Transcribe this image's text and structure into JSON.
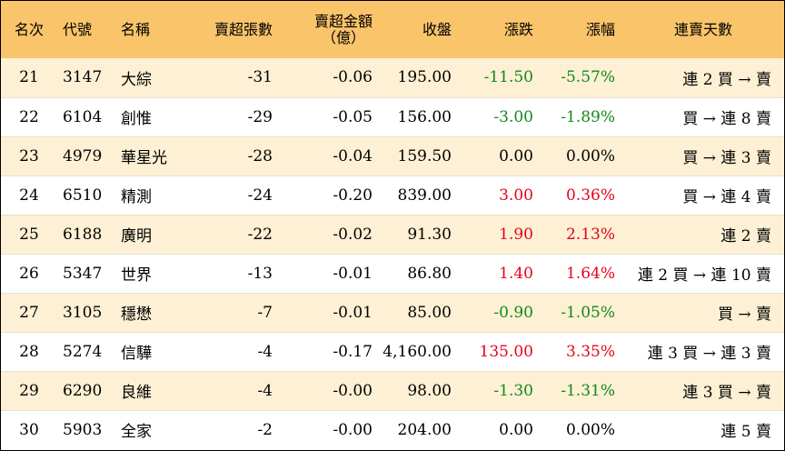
{
  "header": {
    "rank": "名次",
    "code": "代號",
    "name": "名稱",
    "net_sell_lots": "賣超張數",
    "net_sell_amount_line1": "賣超金額",
    "net_sell_amount_line2": "（億）",
    "close": "收盤",
    "change": "漲跌",
    "pct_change": "漲幅",
    "streak": "連賣天數"
  },
  "colors": {
    "header_bg": "#f9c46a",
    "stripe_bg": "#fdf0d4",
    "up": "#e8001c",
    "down": "#118a1c"
  },
  "rows": [
    {
      "rank": "21",
      "code": "3147",
      "name": "大綜",
      "lots": "-31",
      "amount": "-0.06",
      "close": "195.00",
      "change": "-11.50",
      "pct": "-5.57%",
      "dir": "down",
      "streak": "連 2 買 → 賣"
    },
    {
      "rank": "22",
      "code": "6104",
      "name": "創惟",
      "lots": "-29",
      "amount": "-0.05",
      "close": "156.00",
      "change": "-3.00",
      "pct": "-1.89%",
      "dir": "down",
      "streak": "買 → 連 8 賣"
    },
    {
      "rank": "23",
      "code": "4979",
      "name": "華星光",
      "lots": "-28",
      "amount": "-0.04",
      "close": "159.50",
      "change": "0.00",
      "pct": "0.00%",
      "dir": "flat",
      "streak": "買 → 連 3 賣"
    },
    {
      "rank": "24",
      "code": "6510",
      "name": "精測",
      "lots": "-24",
      "amount": "-0.20",
      "close": "839.00",
      "change": "3.00",
      "pct": "0.36%",
      "dir": "up",
      "streak": "買 → 連 4 賣"
    },
    {
      "rank": "25",
      "code": "6188",
      "name": "廣明",
      "lots": "-22",
      "amount": "-0.02",
      "close": "91.30",
      "change": "1.90",
      "pct": "2.13%",
      "dir": "up",
      "streak": "連 2 賣"
    },
    {
      "rank": "26",
      "code": "5347",
      "name": "世界",
      "lots": "-13",
      "amount": "-0.01",
      "close": "86.80",
      "change": "1.40",
      "pct": "1.64%",
      "dir": "up",
      "streak": "連 2 買 → 連 10 賣"
    },
    {
      "rank": "27",
      "code": "3105",
      "name": "穩懋",
      "lots": "-7",
      "amount": "-0.01",
      "close": "85.00",
      "change": "-0.90",
      "pct": "-1.05%",
      "dir": "down",
      "streak": "買 → 賣"
    },
    {
      "rank": "28",
      "code": "5274",
      "name": "信驊",
      "lots": "-4",
      "amount": "-0.17",
      "close": "4,160.00",
      "change": "135.00",
      "pct": "3.35%",
      "dir": "up",
      "streak": "連 3 買 → 連 3 賣"
    },
    {
      "rank": "29",
      "code": "6290",
      "name": "良維",
      "lots": "-4",
      "amount": "-0.00",
      "close": "98.00",
      "change": "-1.30",
      "pct": "-1.31%",
      "dir": "down",
      "streak": "連 3 買 → 賣"
    },
    {
      "rank": "30",
      "code": "5903",
      "name": "全家",
      "lots": "-2",
      "amount": "-0.00",
      "close": "204.00",
      "change": "0.00",
      "pct": "0.00%",
      "dir": "flat",
      "streak": "連 5 賣"
    }
  ]
}
